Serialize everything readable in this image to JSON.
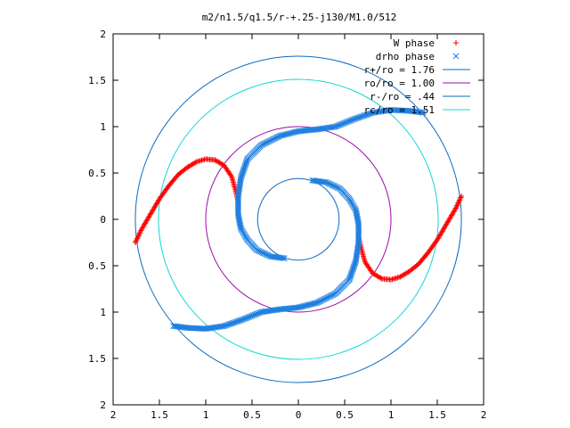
{
  "chart_data": {
    "type": "scatter",
    "title": "m2/n1.5/q1.5/r-+.25-j130/M1.0/512",
    "xlim": [
      -2,
      2
    ],
    "ylim": [
      -2,
      2
    ],
    "x_ticks": [
      {
        "value": -2,
        "label": "2"
      },
      {
        "value": -1.5,
        "label": "1.5"
      },
      {
        "value": -1,
        "label": "1"
      },
      {
        "value": -0.5,
        "label": "0.5"
      },
      {
        "value": 0,
        "label": "0"
      },
      {
        "value": 0.5,
        "label": "0.5"
      },
      {
        "value": 1,
        "label": "1"
      },
      {
        "value": 1.5,
        "label": "1.5"
      },
      {
        "value": 2,
        "label": "2"
      }
    ],
    "y_ticks": [
      {
        "value": 2,
        "label": "2"
      },
      {
        "value": 1.5,
        "label": "1.5"
      },
      {
        "value": 1,
        "label": "1"
      },
      {
        "value": 0.5,
        "label": "0.5"
      },
      {
        "value": 0,
        "label": "0"
      },
      {
        "value": -0.5,
        "label": "0.5"
      },
      {
        "value": -1,
        "label": "1"
      },
      {
        "value": -1.5,
        "label": "1.5"
      },
      {
        "value": -2,
        "label": "2"
      }
    ],
    "grid": false,
    "legend_position": "top-right",
    "series": [
      {
        "name": "W phase",
        "marker": "plus",
        "color": "#ff0000",
        "x": [
          -1.76,
          -1.7,
          -1.6,
          -1.5,
          -1.4,
          -1.3,
          -1.2,
          -1.1,
          -1.0,
          -0.9,
          -0.8,
          -0.72,
          -0.68,
          -0.65,
          1.76,
          1.7,
          1.6,
          1.5,
          1.4,
          1.3,
          1.2,
          1.1,
          1.0,
          0.9,
          0.8,
          0.72,
          0.68,
          0.65
        ],
        "y": [
          -0.25,
          -0.12,
          0.05,
          0.22,
          0.36,
          0.48,
          0.56,
          0.62,
          0.65,
          0.64,
          0.58,
          0.46,
          0.32,
          0.2,
          0.25,
          0.12,
          -0.05,
          -0.22,
          -0.36,
          -0.48,
          -0.56,
          -0.62,
          -0.65,
          -0.64,
          -0.58,
          -0.46,
          -0.32,
          -0.2
        ]
      },
      {
        "name": "drho phase",
        "marker": "cross",
        "color": "#1e7fe0",
        "x": [
          -1.35,
          -1.2,
          -1.0,
          -0.8,
          -0.6,
          -0.4,
          -0.2,
          0.0,
          0.2,
          0.4,
          0.55,
          0.62,
          0.65,
          0.65,
          0.62,
          0.55,
          0.45,
          0.3,
          0.15,
          1.35,
          1.2,
          1.0,
          0.8,
          0.6,
          0.4,
          0.2,
          0.0,
          -0.2,
          -0.4,
          -0.55,
          -0.62,
          -0.65,
          -0.65,
          -0.62,
          -0.55,
          -0.45,
          -0.3,
          -0.15
        ],
        "y": [
          -1.15,
          -1.17,
          -1.18,
          -1.15,
          -1.08,
          -1.0,
          -0.97,
          -0.95,
          -0.9,
          -0.8,
          -0.65,
          -0.45,
          -0.25,
          -0.05,
          0.1,
          0.22,
          0.33,
          0.4,
          0.42,
          1.15,
          1.17,
          1.18,
          1.15,
          1.08,
          1.0,
          0.97,
          0.95,
          0.9,
          0.8,
          0.65,
          0.45,
          0.25,
          0.05,
          -0.1,
          -0.22,
          -0.33,
          -0.4,
          -0.42
        ]
      },
      {
        "name": "r+/ro = 1.76",
        "type": "circle",
        "radius": 1.76,
        "color": "#0a6ac0"
      },
      {
        "name": "ro/ro = 1.00",
        "type": "circle",
        "radius": 1.0,
        "color": "#9d0ca8"
      },
      {
        "name": "r-/ro = .44",
        "type": "circle",
        "radius": 0.44,
        "color": "#0a6ac0"
      },
      {
        "name": "rc/ro = 1.51",
        "type": "circle",
        "radius": 1.51,
        "color": "#10d8d8"
      }
    ]
  }
}
